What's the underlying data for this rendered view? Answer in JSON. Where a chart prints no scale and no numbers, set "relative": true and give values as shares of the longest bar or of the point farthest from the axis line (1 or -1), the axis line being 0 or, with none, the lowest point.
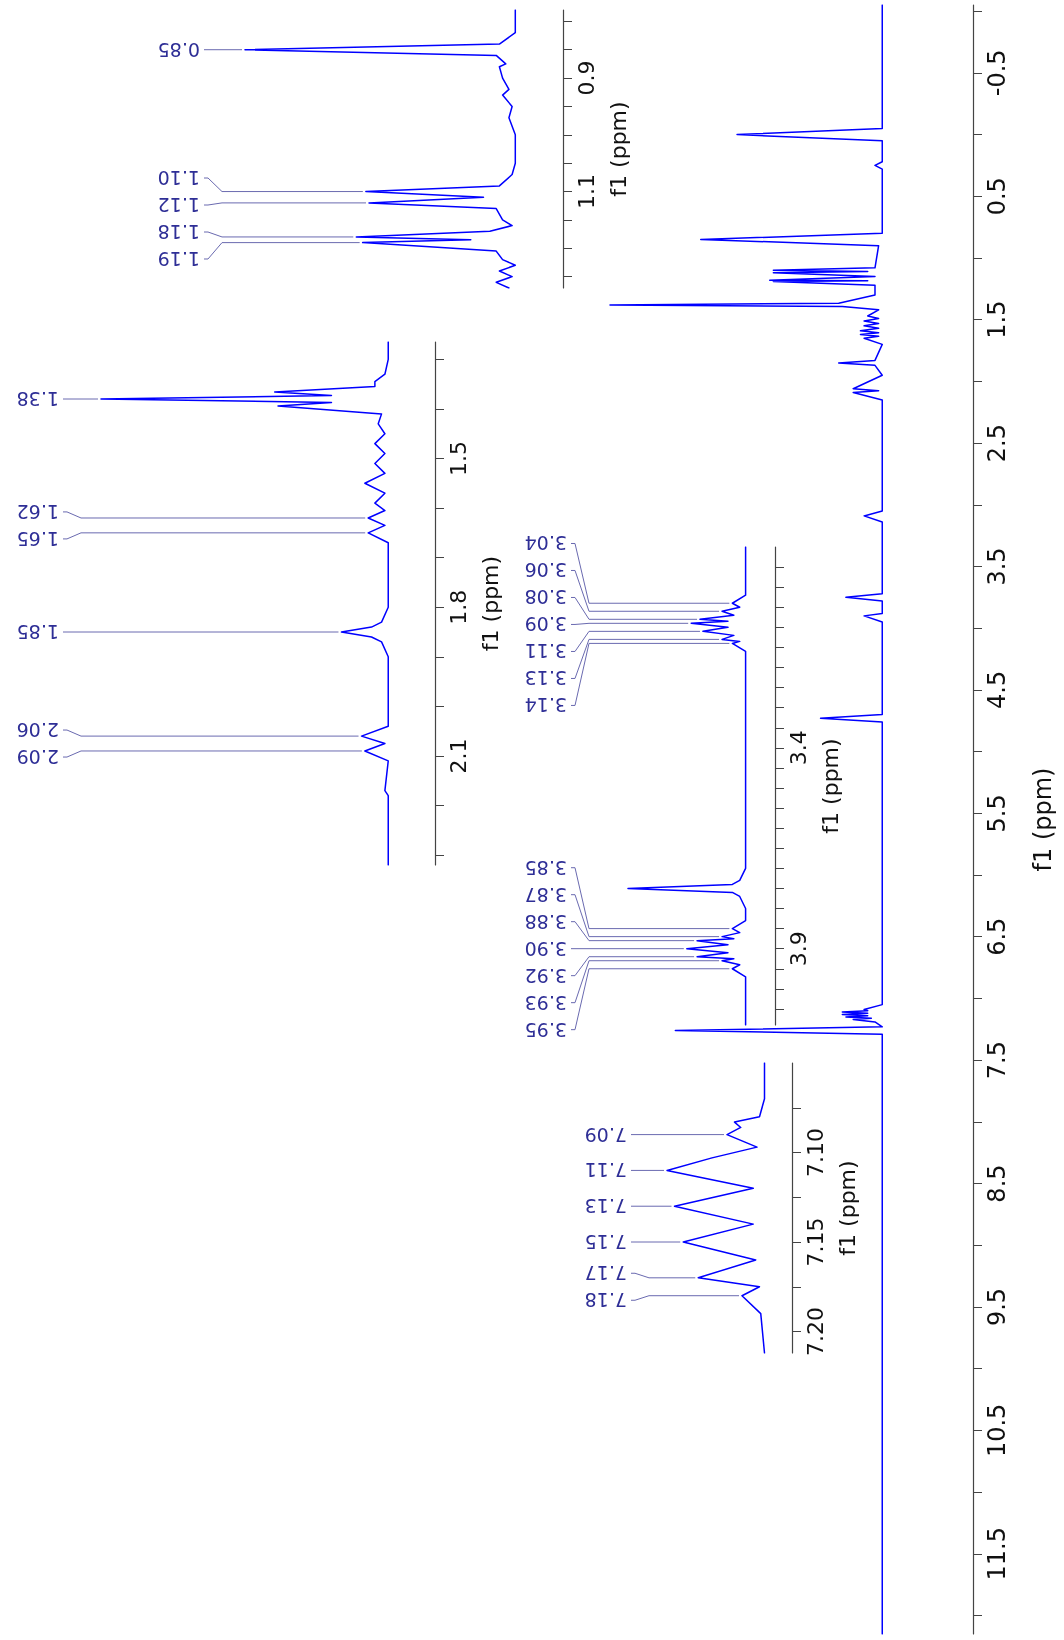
{
  "chart_data": [
    {
      "type": "line",
      "orientation": "horizontal",
      "relative": true,
      "color": "#0000ff",
      "marker": "none",
      "tick_labels": "y",
      "ylabel": "f1 (ppm)",
      "ylim": [
        12.15,
        -1.05
      ],
      "yticks": [
        {
          "value": -1,
          "label": null
        },
        -0.5,
        {
          "value": 0,
          "label": null
        },
        0.5,
        {
          "value": 1,
          "label": null
        },
        1.5,
        {
          "value": 2,
          "label": null
        },
        2.5,
        {
          "value": 3,
          "label": null
        },
        3.5,
        {
          "value": 4,
          "label": null
        },
        4.5,
        {
          "value": 5,
          "label": null
        },
        5.5,
        {
          "value": 6,
          "label": null
        },
        6.5,
        {
          "value": 7,
          "label": null
        },
        7.5,
        {
          "value": 8,
          "label": null
        },
        8.5,
        {
          "value": 9,
          "label": null
        },
        9.5,
        {
          "value": 10,
          "label": null
        },
        10.5,
        {
          "value": 11,
          "label": null
        },
        11.5,
        {
          "value": 12,
          "label": null
        }
      ],
      "x": [
        -1.05,
        -0.05,
        0,
        0.05,
        0.22,
        0.25,
        0.28,
        0.8,
        0.85,
        0.9,
        1.08,
        1.1,
        1.11,
        1.12,
        1.15,
        1.18,
        1.185,
        1.19,
        1.22,
        1.3,
        1.366,
        1.38,
        1.394,
        1.42,
        1.47,
        1.49,
        1.51,
        1.53,
        1.55,
        1.57,
        1.59,
        1.605,
        1.62,
        1.635,
        1.65,
        1.7,
        1.83,
        1.85,
        1.87,
        1.95,
        2.06,
        2.075,
        2.09,
        2.15,
        3.05,
        3.09,
        3.14,
        3.72,
        3.75,
        3.78,
        3.88,
        3.9,
        3.95,
        4.7,
        4.73,
        4.76,
        7.05,
        7.09,
        7.1,
        7.11,
        7.12,
        7.13,
        7.14,
        7.15,
        7.16,
        7.17,
        7.19,
        7.23,
        7.26,
        7.29,
        12.15
      ],
      "values": [
        -0.25,
        -0.25,
        -0.65,
        -0.25,
        -0.25,
        -0.27,
        -0.25,
        -0.25,
        -0.75,
        -0.26,
        -0.27,
        -0.55,
        -0.29,
        -0.55,
        -0.27,
        -0.56,
        -0.29,
        -0.55,
        -0.27,
        -0.27,
        -0.37,
        -1,
        -0.36,
        -0.26,
        -0.29,
        -0.26,
        -0.3,
        -0.26,
        -0.3,
        -0.26,
        -0.31,
        -0.26,
        -0.31,
        -0.26,
        -0.3,
        -0.25,
        -0.27,
        -0.37,
        -0.27,
        -0.25,
        -0.33,
        -0.26,
        -0.33,
        -0.25,
        -0.25,
        -0.3,
        -0.25,
        -0.25,
        -0.35,
        -0.25,
        -0.25,
        -0.3,
        -0.25,
        -0.25,
        -0.42,
        -0.25,
        -0.25,
        -0.3,
        -0.29,
        -0.36,
        -0.29,
        -0.36,
        -0.29,
        -0.35,
        -0.28,
        -0.33,
        -0.27,
        -0.25,
        -0.82,
        -0.25,
        -0.25
      ]
    },
    {
      "type": "line",
      "orientation": "horizontal",
      "relative": true,
      "color": "#0000ff",
      "marker": "none",
      "tick_labels": "y",
      "ylabel": "f1 (ppm)",
      "ylim": [
        1.27,
        0.78
      ],
      "yticks": [
        {
          "value": 0.8,
          "label": null
        },
        {
          "value": 0.85,
          "label": null
        },
        0.9,
        {
          "value": 0.95,
          "label": null
        },
        {
          "value": 1,
          "label": null
        },
        {
          "value": 1.05,
          "label": null
        },
        1.1,
        {
          "value": 1.15,
          "label": null
        },
        {
          "value": 1.2,
          "label": null
        },
        {
          "value": 1.25,
          "label": null
        }
      ],
      "x": [
        0.78,
        0.82,
        0.84,
        0.85,
        0.86,
        0.875,
        0.88,
        0.9,
        0.92,
        0.93,
        0.95,
        0.97,
        1,
        1.05,
        1.07,
        1.09,
        1.1,
        1.11,
        1.12,
        1.13,
        1.15,
        1.16,
        1.17,
        1.18,
        1.185,
        1.19,
        1.205,
        1.22,
        1.23,
        1.24,
        1.25,
        1.26,
        1.27
      ],
      "values": [
        -0.15,
        -0.15,
        -0.2,
        -1,
        -0.21,
        -0.18,
        -0.2,
        -0.19,
        -0.17,
        -0.19,
        -0.16,
        -0.17,
        -0.15,
        -0.15,
        -0.16,
        -0.2,
        -0.62,
        -0.25,
        -0.61,
        -0.21,
        -0.19,
        -0.16,
        -0.23,
        -0.65,
        -0.29,
        -0.63,
        -0.21,
        -0.19,
        -0.15,
        -0.2,
        -0.16,
        -0.21,
        -0.17
      ],
      "annotations": [
        {
          "text": "0.85",
          "x": -1,
          "y": 0.85
        },
        {
          "text": "1.10",
          "x": -0.62,
          "y": 1.1
        },
        {
          "text": "1.12",
          "x": -0.61,
          "y": 1.12
        },
        {
          "text": "1.18",
          "x": -0.65,
          "y": 1.18
        },
        {
          "text": "1.19",
          "x": -0.63,
          "y": 1.19
        }
      ]
    },
    {
      "type": "line",
      "orientation": "horizontal",
      "relative": true,
      "color": "#0000ff",
      "marker": "none",
      "tick_labels": "y",
      "ylabel": "f1 (ppm)",
      "ylim": [
        2.32,
        1.265
      ],
      "yticks": [
        {
          "value": 1.3,
          "label": null
        },
        {
          "value": 1.4,
          "label": null
        },
        1.5,
        {
          "value": 1.6,
          "label": null
        },
        {
          "value": 1.7,
          "label": null
        },
        1.8,
        {
          "value": 1.9,
          "label": null
        },
        {
          "value": 2,
          "label": null
        },
        2.1,
        {
          "value": 2.2,
          "label": null
        },
        {
          "value": 2.3,
          "label": null
        }
      ],
      "x": [
        1.265,
        1.3,
        1.33,
        1.345,
        1.355,
        1.366,
        1.373,
        1.38,
        1.387,
        1.394,
        1.41,
        1.43,
        1.45,
        1.47,
        1.49,
        1.51,
        1.53,
        1.55,
        1.57,
        1.59,
        1.605,
        1.62,
        1.635,
        1.65,
        1.67,
        1.8,
        1.83,
        1.84,
        1.85,
        1.86,
        1.87,
        1.9,
        2.04,
        2.06,
        2.075,
        2.09,
        2.11,
        2.17,
        2.18,
        2.32
      ],
      "values": [
        -0.14,
        -0.14,
        -0.15,
        -0.18,
        -0.18,
        -0.48,
        -0.31,
        -1,
        -0.31,
        -0.47,
        -0.16,
        -0.17,
        -0.15,
        -0.18,
        -0.15,
        -0.18,
        -0.15,
        -0.21,
        -0.15,
        -0.18,
        -0.15,
        -0.2,
        -0.15,
        -0.2,
        -0.14,
        -0.14,
        -0.16,
        -0.19,
        -0.28,
        -0.19,
        -0.16,
        -0.14,
        -0.14,
        -0.22,
        -0.15,
        -0.21,
        -0.14,
        -0.15,
        -0.14,
        -0.14
      ],
      "annotations": [
        {
          "text": "1.38",
          "x": -1,
          "y": 1.38
        },
        {
          "text": "1.62",
          "x": -0.2,
          "y": 1.62
        },
        {
          "text": "1.65",
          "x": -0.2,
          "y": 1.65
        },
        {
          "text": "1.85",
          "x": -0.28,
          "y": 1.85
        },
        {
          "text": "2.06",
          "x": -0.22,
          "y": 2.06
        },
        {
          "text": "2.09",
          "x": -0.21,
          "y": 2.09
        }
      ]
    },
    {
      "type": "line",
      "orientation": "horizontal",
      "relative": true,
      "color": "#0000ff",
      "marker": "none",
      "tick_labels": "y",
      "ylabel": "f1 (ppm)",
      "ylim": [
        4.09,
        2.9
      ],
      "yticks": [
        {
          "value": 2.95,
          "label": null
        },
        {
          "value": 3,
          "label": null
        },
        {
          "value": 3.05,
          "label": null
        },
        {
          "value": 3.1,
          "label": null
        },
        {
          "value": 3.15,
          "label": null
        },
        {
          "value": 3.2,
          "label": null
        },
        {
          "value": 3.25,
          "label": null
        },
        {
          "value": 3.3,
          "label": null
        },
        {
          "value": 3.35,
          "label": null
        },
        3.4,
        {
          "value": 3.45,
          "label": null
        },
        {
          "value": 3.5,
          "label": null
        },
        {
          "value": 3.55,
          "label": null
        },
        {
          "value": 3.6,
          "label": null
        },
        {
          "value": 3.65,
          "label": null
        },
        {
          "value": 3.7,
          "label": null
        },
        {
          "value": 3.75,
          "label": null
        },
        {
          "value": 3.8,
          "label": null
        },
        {
          "value": 3.85,
          "label": null
        },
        3.9,
        {
          "value": 3.95,
          "label": null
        },
        {
          "value": 4,
          "label": null
        },
        {
          "value": 4.05,
          "label": null
        }
      ],
      "x": [
        2.9,
        3.02,
        3.04,
        3.05,
        3.06,
        3.07,
        3.08,
        3.085,
        3.09,
        3.1,
        3.11,
        3.12,
        3.13,
        3.135,
        3.14,
        3.16,
        3.7,
        3.73,
        3.74,
        3.75,
        3.76,
        3.77,
        3.8,
        3.83,
        3.85,
        3.86,
        3.87,
        3.875,
        3.88,
        3.89,
        3.9,
        3.91,
        3.92,
        3.925,
        3.93,
        3.94,
        3.95,
        3.97,
        4.09
      ],
      "values": [
        -0.2,
        -0.2,
        -0.29,
        -0.24,
        -0.36,
        -0.28,
        -0.51,
        -0.32,
        -0.57,
        -0.32,
        -0.49,
        -0.28,
        -0.36,
        -0.24,
        -0.29,
        -0.2,
        -0.2,
        -0.24,
        -0.29,
        -1,
        -0.29,
        -0.24,
        -0.2,
        -0.2,
        -0.29,
        -0.24,
        -0.36,
        -0.28,
        -0.53,
        -0.32,
        -0.6,
        -0.32,
        -0.53,
        -0.28,
        -0.36,
        -0.24,
        -0.29,
        -0.2,
        -0.2
      ],
      "annotations": [
        {
          "text": "3.04",
          "x": -0.29,
          "y": 3.04
        },
        {
          "text": "3.06",
          "x": -0.36,
          "y": 3.06
        },
        {
          "text": "3.08",
          "x": -0.51,
          "y": 3.08
        },
        {
          "text": "3.09",
          "x": -0.57,
          "y": 3.09
        },
        {
          "text": "3.11",
          "x": -0.49,
          "y": 3.11
        },
        {
          "text": "3.13",
          "x": -0.36,
          "y": 3.13
        },
        {
          "text": "3.14",
          "x": -0.29,
          "y": 3.14
        },
        {
          "text": "3.85",
          "x": -0.29,
          "y": 3.85
        },
        {
          "text": "3.87",
          "x": -0.36,
          "y": 3.87
        },
        {
          "text": "3.88",
          "x": -0.53,
          "y": 3.88
        },
        {
          "text": "3.90",
          "x": -0.6,
          "y": 3.9
        },
        {
          "text": "3.92",
          "x": -0.53,
          "y": 3.92
        },
        {
          "text": "3.93",
          "x": -0.36,
          "y": 3.93
        },
        {
          "text": "3.95",
          "x": -0.29,
          "y": 3.95
        }
      ]
    },
    {
      "type": "line",
      "orientation": "horizontal",
      "relative": true,
      "color": "#0000ff",
      "marker": "none",
      "tick_labels": "y",
      "ylabel": "f1 (ppm)",
      "ylim": [
        7.212,
        7.05
      ],
      "yticks": [
        {
          "value": 7.075,
          "label": null
        },
        {
          "value": 7.1,
          "label": "7.10"
        },
        {
          "value": 7.125,
          "label": null
        },
        7.15,
        {
          "value": 7.175,
          "label": null
        },
        {
          "value": 7.2,
          "label": "7.20"
        }
      ],
      "x": [
        7.05,
        7.07,
        7.08,
        7.083,
        7.086,
        7.09,
        7.097,
        7.103,
        7.11,
        7.12,
        7.13,
        7.14,
        7.15,
        7.16,
        7.17,
        7.175,
        7.18,
        7.19,
        7.212
      ],
      "values": [
        -0.22,
        -0.22,
        -0.26,
        -0.46,
        -0.41,
        -0.52,
        -0.28,
        -0.64,
        -1,
        -0.31,
        -0.94,
        -0.31,
        -0.87,
        -0.29,
        -0.75,
        -0.26,
        -0.4,
        -0.25,
        -0.22
      ],
      "annotations": [
        {
          "text": "7.09",
          "x": -0.52,
          "y": 7.09
        },
        {
          "text": "7.11",
          "x": -1,
          "y": 7.11
        },
        {
          "text": "7.13",
          "x": -0.94,
          "y": 7.13
        },
        {
          "text": "7.15",
          "x": -0.87,
          "y": 7.15
        },
        {
          "text": "7.17",
          "x": -0.75,
          "y": 7.17
        },
        {
          "text": "7.18",
          "x": -0.4,
          "y": 7.18
        }
      ]
    }
  ]
}
